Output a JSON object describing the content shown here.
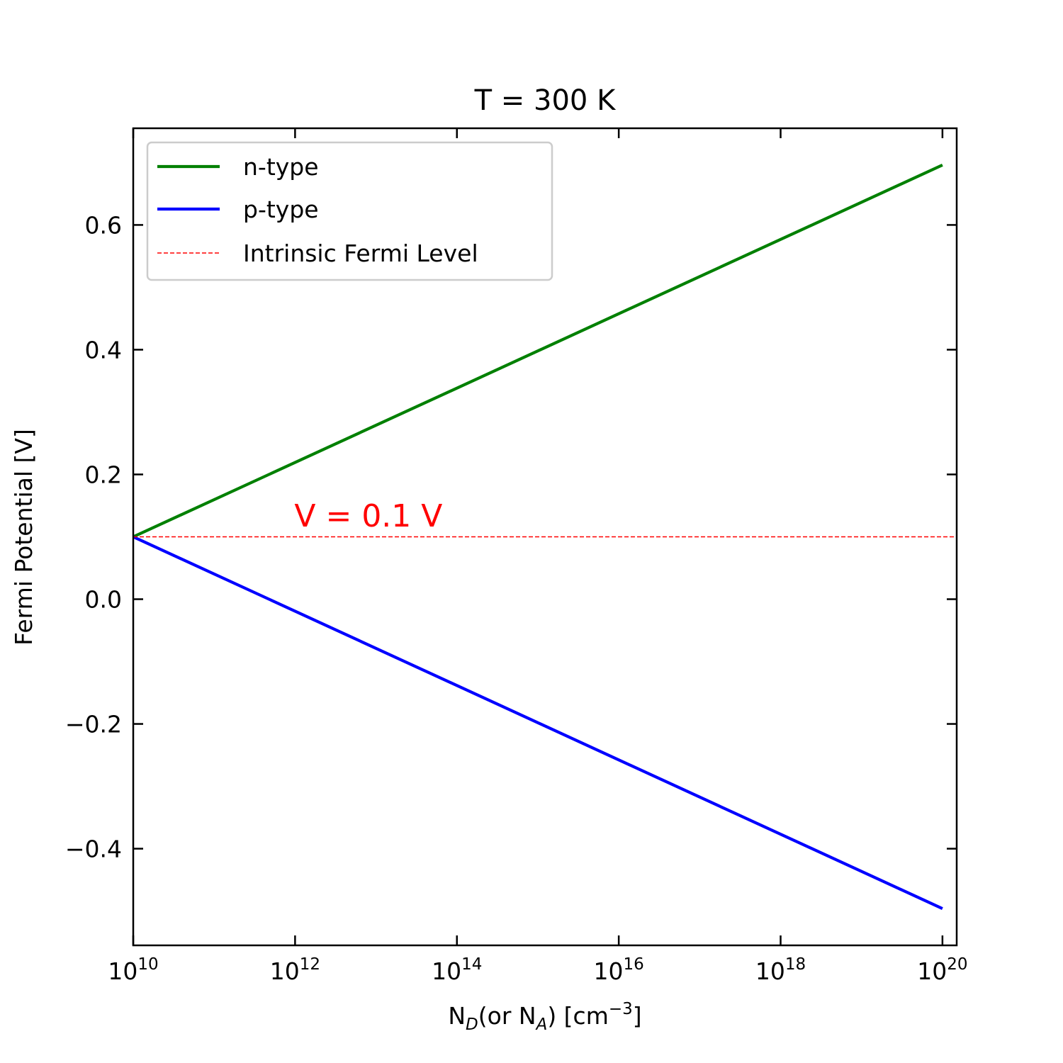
{
  "chart_data": {
    "type": "line",
    "title": "T = 300 K",
    "xlabel": {
      "parts": [
        "N",
        "D",
        "(or N",
        "A",
        ") [cm",
        "−3",
        "]"
      ]
    },
    "ylabel": "Fermi Potential [V]",
    "x_scale": "log",
    "xlim": [
      10000000000.0,
      1.5e+20
    ],
    "ylim": [
      -0.555,
      0.755
    ],
    "x_ticks": [
      {
        "base": "10",
        "exp": "10",
        "value": 10000000000.0
      },
      {
        "base": "10",
        "exp": "12",
        "value": 1000000000000.0
      },
      {
        "base": "10",
        "exp": "14",
        "value": 100000000000000.0
      },
      {
        "base": "10",
        "exp": "16",
        "value": 1e+16
      },
      {
        "base": "10",
        "exp": "18",
        "value": 1e+18
      },
      {
        "base": "10",
        "exp": "20",
        "value": 1e+20
      }
    ],
    "y_ticks": [
      {
        "label": "−0.4",
        "value": -0.4
      },
      {
        "label": "−0.2",
        "value": -0.2
      },
      {
        "label": "0.0",
        "value": 0.0
      },
      {
        "label": "0.2",
        "value": 0.2
      },
      {
        "label": "0.4",
        "value": 0.4
      },
      {
        "label": "0.6",
        "value": 0.6
      }
    ],
    "grid": false,
    "legend_position": "top-left",
    "series": [
      {
        "name": "n-type",
        "color": "#008000",
        "style": "solid",
        "x": [
          10000000000.0,
          1e+20
        ],
        "y": [
          0.1,
          0.696
        ]
      },
      {
        "name": "p-type",
        "color": "#0000ff",
        "style": "solid",
        "x": [
          10000000000.0,
          1e+20
        ],
        "y": [
          0.1,
          -0.496
        ]
      },
      {
        "name": "Intrinsic Fermi Level",
        "color": "#ff0000",
        "style": "dashed",
        "x": [
          10000000000.0,
          1.5e+20
        ],
        "y": [
          0.1,
          0.1
        ]
      }
    ],
    "annotation": {
      "text": "V  = 0.1 V",
      "color": "#ff0000",
      "x": 1000000000000.0,
      "y": 0.12
    }
  }
}
